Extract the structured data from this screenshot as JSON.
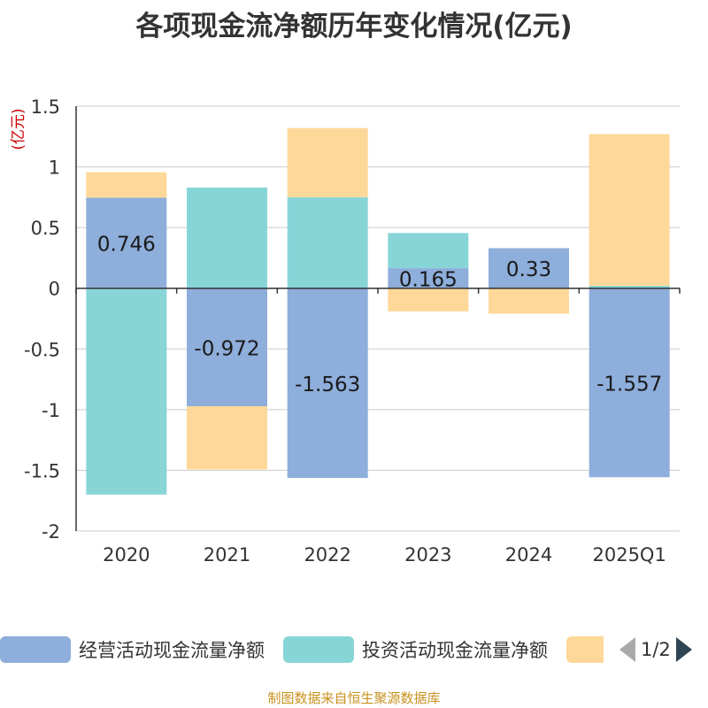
{
  "title": "各项现金流净额历年变化情况(亿元)",
  "unit_label": "(亿元)",
  "source": "制图数据来自恒生聚源数据库",
  "legend": {
    "page_indicator": "1/2"
  },
  "colors": {
    "operating": "#8eaedb",
    "investing": "#88d5d8",
    "financing": "#fdd898",
    "grid": "#cccccc",
    "axis": "#333333",
    "unit": "#cc0000"
  },
  "chart_data": {
    "type": "bar",
    "stacked": true,
    "categories": [
      "2020",
      "2021",
      "2022",
      "2023",
      "2024",
      "2025Q1"
    ],
    "ylim": [
      -2,
      1.5
    ],
    "yticks": [
      1.5,
      1,
      0.5,
      0,
      -0.5,
      -1,
      -1.5,
      -2
    ],
    "ytick_labels": [
      "1.5",
      "1",
      "0.5",
      "0",
      "-0.5",
      "-1",
      "-1.5",
      "-2"
    ],
    "series": [
      {
        "name": "经营活动现金流量净额",
        "values": [
          0.746,
          -0.972,
          -1.563,
          0.165,
          0.33,
          -1.557
        ],
        "labels": [
          "0.746",
          "-0.972",
          "-1.563",
          "0.165",
          "0.33",
          "-1.557"
        ]
      },
      {
        "name": "投资活动现金流量净额",
        "values": [
          -1.7,
          0.83,
          0.75,
          0.29,
          0.0,
          0.02
        ]
      },
      {
        "name": "",
        "values": [
          0.21,
          -0.52,
          0.57,
          -0.19,
          -0.21,
          1.25
        ]
      }
    ]
  }
}
